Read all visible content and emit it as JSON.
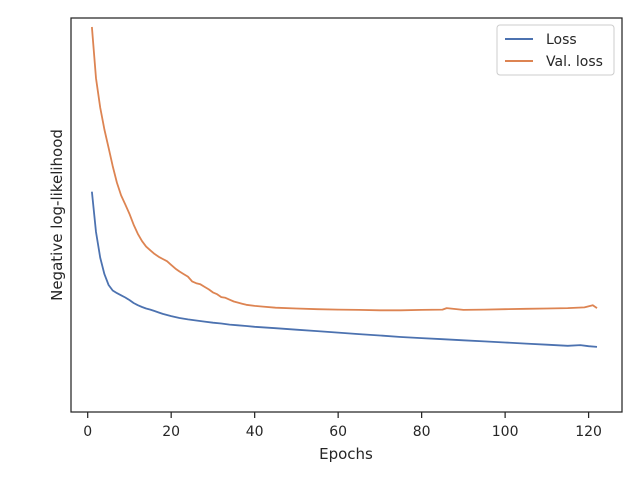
{
  "chart_data": {
    "type": "line",
    "title": "",
    "xlabel": "Epochs",
    "ylabel": "Negative log-likelihood",
    "xlim": [
      -4,
      128
    ],
    "ylim": [
      0.0,
      1.0
    ],
    "x_ticks": [
      0,
      20,
      40,
      60,
      80,
      100,
      120
    ],
    "y_ticks_shown": false,
    "grid": false,
    "legend_position": "top-right",
    "series": [
      {
        "name": "Loss",
        "color": "#4c72b0",
        "x": [
          1,
          2,
          3,
          4,
          5,
          6,
          7,
          8,
          9,
          10,
          11,
          12,
          13,
          14,
          15,
          16,
          17,
          18,
          19,
          20,
          22,
          24,
          26,
          28,
          30,
          32,
          34,
          36,
          38,
          40,
          45,
          50,
          55,
          60,
          65,
          70,
          75,
          80,
          85,
          90,
          95,
          100,
          105,
          110,
          115,
          118,
          120,
          122
        ],
        "y": [
          0.55,
          0.44,
          0.37,
          0.325,
          0.295,
          0.28,
          0.273,
          0.267,
          0.261,
          0.254,
          0.246,
          0.24,
          0.235,
          0.231,
          0.228,
          0.224,
          0.22,
          0.216,
          0.213,
          0.21,
          0.205,
          0.201,
          0.198,
          0.195,
          0.192,
          0.19,
          0.187,
          0.185,
          0.183,
          0.181,
          0.177,
          0.173,
          0.169,
          0.165,
          0.161,
          0.157,
          0.153,
          0.15,
          0.147,
          0.144,
          0.141,
          0.138,
          0.135,
          0.132,
          0.129,
          0.131,
          0.128,
          0.126
        ]
      },
      {
        "name": "Val. loss",
        "color": "#dd8452",
        "x": [
          1,
          2,
          3,
          4,
          5,
          6,
          7,
          8,
          9,
          10,
          11,
          12,
          13,
          14,
          15,
          16,
          17,
          18,
          19,
          20,
          21,
          22,
          23,
          24,
          25,
          26,
          27,
          28,
          29,
          30,
          31,
          32,
          33,
          34,
          35,
          36,
          37,
          38,
          40,
          42,
          45,
          50,
          55,
          60,
          65,
          70,
          75,
          80,
          85,
          86,
          90,
          95,
          100,
          105,
          110,
          115,
          119,
          121,
          122
        ],
        "y": [
          1.0,
          0.86,
          0.78,
          0.72,
          0.67,
          0.62,
          0.575,
          0.54,
          0.515,
          0.49,
          0.46,
          0.435,
          0.415,
          0.4,
          0.39,
          0.38,
          0.372,
          0.366,
          0.36,
          0.35,
          0.34,
          0.332,
          0.325,
          0.318,
          0.305,
          0.3,
          0.297,
          0.29,
          0.283,
          0.275,
          0.27,
          0.262,
          0.26,
          0.255,
          0.25,
          0.247,
          0.244,
          0.241,
          0.238,
          0.236,
          0.233,
          0.231,
          0.229,
          0.228,
          0.227,
          0.226,
          0.226,
          0.227,
          0.228,
          0.232,
          0.227,
          0.228,
          0.229,
          0.23,
          0.231,
          0.232,
          0.234,
          0.24,
          0.232
        ]
      }
    ]
  }
}
